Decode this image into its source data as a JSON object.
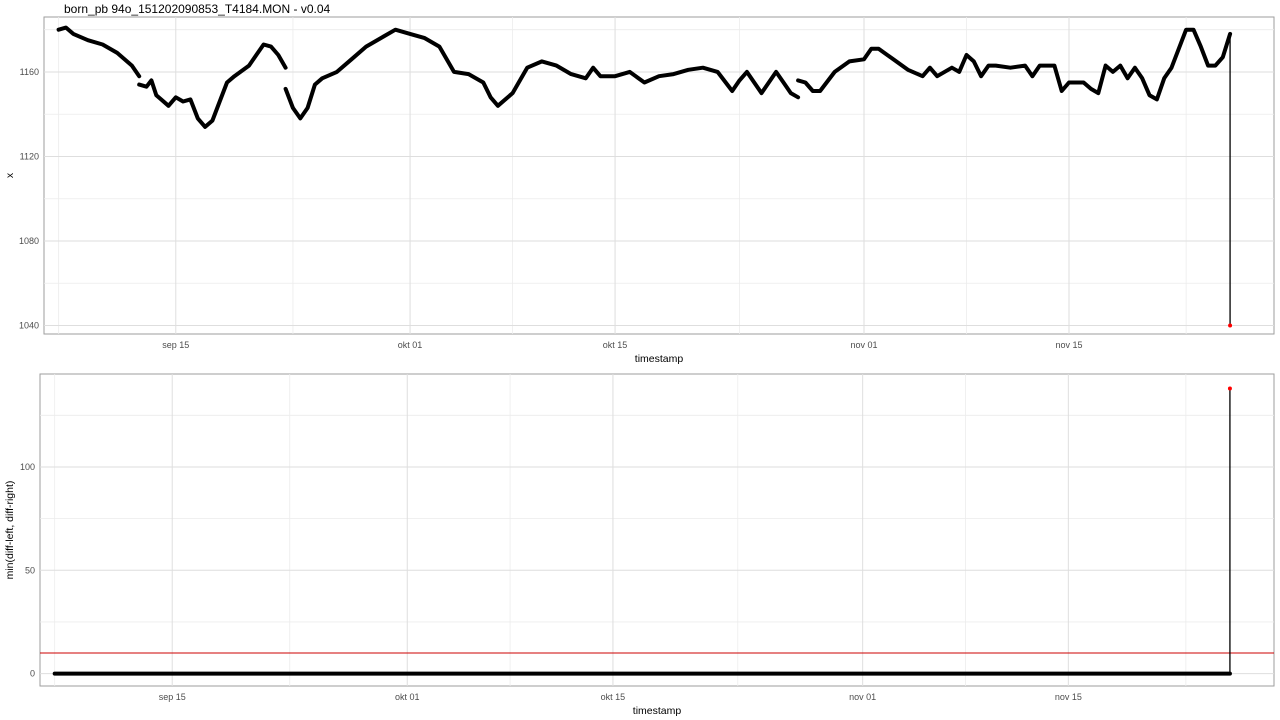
{
  "title": "born_pb 94o_151202090853_T4184.MON - v0.04",
  "colors": {
    "series": "#000000",
    "outlier": "#ff0000",
    "threshold": "#cc0000",
    "grid": "#dedede",
    "panel_border": "#9e9e9e"
  },
  "chart_data": [
    {
      "type": "line",
      "xlabel": "timestamp",
      "ylabel": "x",
      "xaxis_type": "date",
      "xlim": [
        "2015-09-06",
        "2015-11-29"
      ],
      "ylim": [
        1036,
        1186
      ],
      "x_ticks": [
        {
          "date": "2015-09-15",
          "label": "sep 15"
        },
        {
          "date": "2015-10-01",
          "label": "okt 01"
        },
        {
          "date": "2015-10-15",
          "label": "okt 15"
        },
        {
          "date": "2015-11-01",
          "label": "nov 01"
        },
        {
          "date": "2015-11-15",
          "label": "nov 15"
        }
      ],
      "y_ticks": [
        1040,
        1080,
        1120,
        1160
      ],
      "grid": true,
      "series": [
        {
          "segments": [
            [
              [
                "2015-09-07T00:00",
                1180
              ],
              [
                "2015-09-07T12:00",
                1181
              ],
              [
                "2015-09-08T00:00",
                1178
              ],
              [
                "2015-09-09T00:00",
                1175
              ],
              [
                "2015-09-10T00:00",
                1173
              ],
              [
                "2015-09-11T00:00",
                1169
              ],
              [
                "2015-09-12T00:00",
                1163
              ],
              [
                "2015-09-12T12:00",
                1158
              ]
            ],
            [
              [
                "2015-09-12T12:00",
                1154
              ],
              [
                "2015-09-13T00:00",
                1153
              ],
              [
                "2015-09-13T08:00",
                1156
              ],
              [
                "2015-09-13T16:00",
                1149
              ],
              [
                "2015-09-14T00:00",
                1147
              ],
              [
                "2015-09-14T12:00",
                1144
              ],
              [
                "2015-09-15T00:00",
                1148
              ],
              [
                "2015-09-15T12:00",
                1146
              ],
              [
                "2015-09-16T00:00",
                1147
              ],
              [
                "2015-09-16T12:00",
                1138
              ],
              [
                "2015-09-17T00:00",
                1134
              ],
              [
                "2015-09-17T12:00",
                1137
              ],
              [
                "2015-09-18T00:00",
                1146
              ],
              [
                "2015-09-18T12:00",
                1155
              ],
              [
                "2015-09-19T00:00",
                1158
              ],
              [
                "2015-09-20T00:00",
                1163
              ],
              [
                "2015-09-20T12:00",
                1168
              ],
              [
                "2015-09-21T00:00",
                1173
              ],
              [
                "2015-09-21T12:00",
                1172
              ],
              [
                "2015-09-22T00:00",
                1168
              ],
              [
                "2015-09-22T12:00",
                1162
              ]
            ],
            [
              [
                "2015-09-22T12:00",
                1152
              ],
              [
                "2015-09-23T00:00",
                1143
              ],
              [
                "2015-09-23T12:00",
                1138
              ],
              [
                "2015-09-24T00:00",
                1143
              ],
              [
                "2015-09-24T12:00",
                1154
              ],
              [
                "2015-09-25T00:00",
                1157
              ],
              [
                "2015-09-26T00:00",
                1160
              ],
              [
                "2015-09-27T00:00",
                1166
              ],
              [
                "2015-09-28T00:00",
                1172
              ],
              [
                "2015-09-29T00:00",
                1176
              ],
              [
                "2015-09-30T00:00",
                1180
              ],
              [
                "2015-10-01T00:00",
                1178
              ],
              [
                "2015-10-02T00:00",
                1176
              ],
              [
                "2015-10-03T00:00",
                1172
              ],
              [
                "2015-10-04T00:00",
                1160
              ],
              [
                "2015-10-05T00:00",
                1159
              ],
              [
                "2015-10-06T00:00",
                1155
              ],
              [
                "2015-10-06T12:00",
                1148
              ],
              [
                "2015-10-07T00:00",
                1144
              ],
              [
                "2015-10-08T00:00",
                1150
              ],
              [
                "2015-10-09T00:00",
                1162
              ],
              [
                "2015-10-10T00:00",
                1165
              ],
              [
                "2015-10-11T00:00",
                1163
              ],
              [
                "2015-10-12T00:00",
                1159
              ],
              [
                "2015-10-13T00:00",
                1157
              ],
              [
                "2015-10-13T12:00",
                1162
              ],
              [
                "2015-10-14T00:00",
                1158
              ],
              [
                "2015-10-15T00:00",
                1158
              ],
              [
                "2015-10-16T00:00",
                1160
              ],
              [
                "2015-10-17T00:00",
                1155
              ],
              [
                "2015-10-18T00:00",
                1158
              ],
              [
                "2015-10-19T00:00",
                1159
              ],
              [
                "2015-10-20T00:00",
                1161
              ],
              [
                "2015-10-21T00:00",
                1162
              ],
              [
                "2015-10-22T00:00",
                1160
              ],
              [
                "2015-10-23T00:00",
                1151
              ],
              [
                "2015-10-23T12:00",
                1156
              ],
              [
                "2015-10-24T00:00",
                1160
              ],
              [
                "2015-10-25T00:00",
                1150
              ],
              [
                "2015-10-26T00:00",
                1160
              ],
              [
                "2015-10-26T12:00",
                1155
              ],
              [
                "2015-10-27T00:00",
                1150
              ],
              [
                "2015-10-27T12:00",
                1148
              ]
            ],
            [
              [
                "2015-10-27T12:00",
                1156
              ],
              [
                "2015-10-28T00:00",
                1155
              ],
              [
                "2015-10-28T12:00",
                1151
              ],
              [
                "2015-10-29T00:00",
                1151
              ],
              [
                "2015-10-30T00:00",
                1160
              ],
              [
                "2015-10-31T00:00",
                1165
              ],
              [
                "2015-11-01T00:00",
                1166
              ],
              [
                "2015-11-01T12:00",
                1171
              ],
              [
                "2015-11-02T00:00",
                1171
              ],
              [
                "2015-11-03T00:00",
                1166
              ],
              [
                "2015-11-04T00:00",
                1161
              ],
              [
                "2015-11-05T00:00",
                1158
              ],
              [
                "2015-11-05T12:00",
                1162
              ],
              [
                "2015-11-06T00:00",
                1158
              ],
              [
                "2015-11-07T00:00",
                1162
              ],
              [
                "2015-11-07T12:00",
                1160
              ],
              [
                "2015-11-08T00:00",
                1168
              ],
              [
                "2015-11-08T12:00",
                1165
              ],
              [
                "2015-11-09T00:00",
                1158
              ],
              [
                "2015-11-09T12:00",
                1163
              ],
              [
                "2015-11-10T00:00",
                1163
              ],
              [
                "2015-11-11T00:00",
                1162
              ],
              [
                "2015-11-12T00:00",
                1163
              ],
              [
                "2015-11-12T12:00",
                1158
              ],
              [
                "2015-11-13T00:00",
                1163
              ],
              [
                "2015-11-14T00:00",
                1163
              ],
              [
                "2015-11-14T12:00",
                1151
              ],
              [
                "2015-11-15T00:00",
                1155
              ],
              [
                "2015-11-16T00:00",
                1155
              ],
              [
                "2015-11-16T12:00",
                1152
              ],
              [
                "2015-11-17T00:00",
                1150
              ],
              [
                "2015-11-17T12:00",
                1163
              ],
              [
                "2015-11-18T00:00",
                1160
              ],
              [
                "2015-11-18T12:00",
                1163
              ],
              [
                "2015-11-19T00:00",
                1157
              ],
              [
                "2015-11-19T12:00",
                1162
              ],
              [
                "2015-11-20T00:00",
                1157
              ],
              [
                "2015-11-20T12:00",
                1149
              ],
              [
                "2015-11-21T00:00",
                1147
              ],
              [
                "2015-11-21T12:00",
                1157
              ],
              [
                "2015-11-22T00:00",
                1162
              ],
              [
                "2015-11-22T12:00",
                1171
              ],
              [
                "2015-11-23T00:00",
                1180
              ],
              [
                "2015-11-23T12:00",
                1180
              ],
              [
                "2015-11-24T00:00",
                1172
              ],
              [
                "2015-11-24T12:00",
                1163
              ],
              [
                "2015-11-25T00:00",
                1163
              ],
              [
                "2015-11-25T12:00",
                1167
              ],
              [
                "2015-11-26T00:00",
                1178
              ]
            ]
          ]
        }
      ],
      "outlier": {
        "x": "2015-11-26T00:00",
        "y": 1040,
        "from_y": 1177
      }
    },
    {
      "type": "line",
      "xlabel": "timestamp",
      "ylabel": "min(diff-left, diff-right)",
      "xaxis_type": "date",
      "xlim": [
        "2015-09-06",
        "2015-11-29"
      ],
      "ylim": [
        -6,
        145
      ],
      "x_ticks": [
        {
          "date": "2015-09-15",
          "label": "sep 15"
        },
        {
          "date": "2015-10-01",
          "label": "okt 01"
        },
        {
          "date": "2015-10-15",
          "label": "okt 15"
        },
        {
          "date": "2015-11-01",
          "label": "nov 01"
        },
        {
          "date": "2015-11-15",
          "label": "nov 15"
        }
      ],
      "y_ticks": [
        0,
        50,
        100
      ],
      "grid": true,
      "baseline": {
        "from": "2015-09-07T00:00",
        "to": "2015-11-26T00:00",
        "y": 0
      },
      "threshold_line": {
        "y": 10
      },
      "outlier": {
        "x": "2015-11-26T00:00",
        "y": 138,
        "from_y": 0
      }
    }
  ]
}
